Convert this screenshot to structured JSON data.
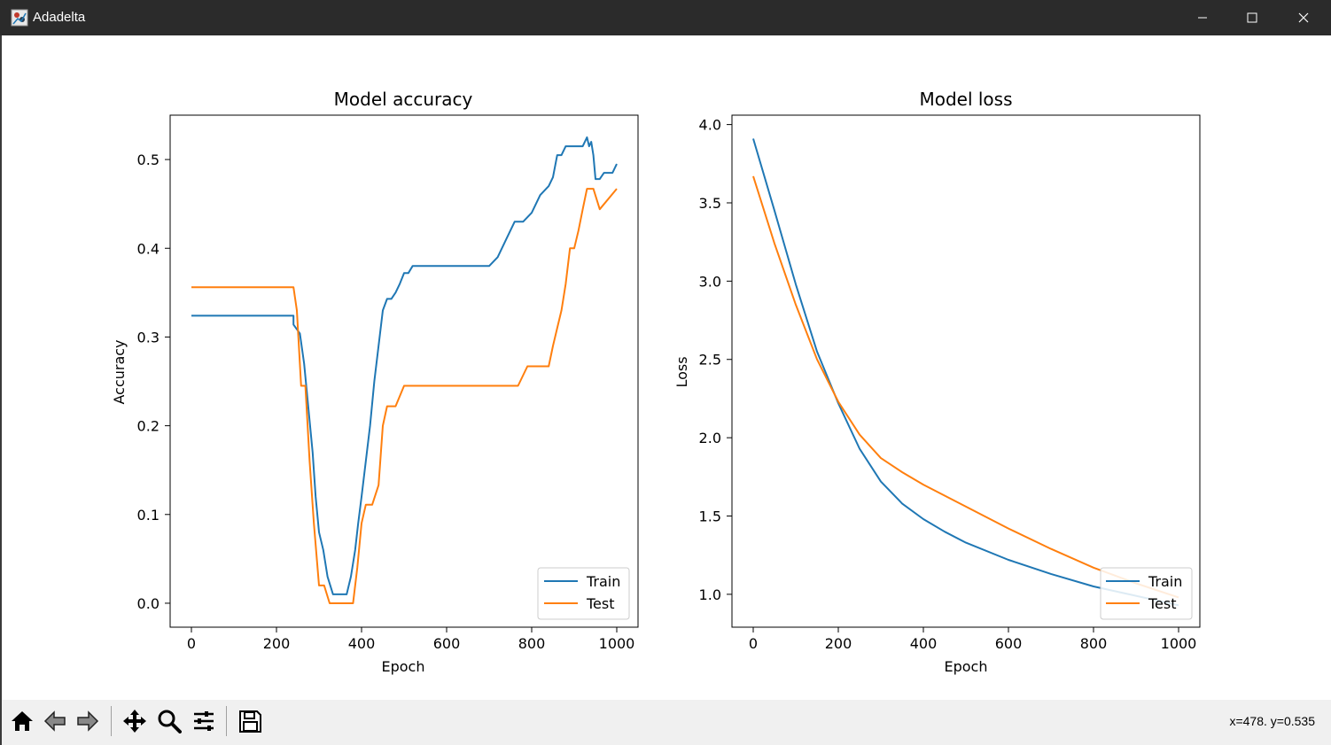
{
  "window": {
    "title": "Adadelta",
    "icon": "matplotlib-figure-icon",
    "controls": [
      "minimize-icon",
      "maximize-icon",
      "close-icon"
    ]
  },
  "toolbar": {
    "buttons": [
      "home-icon",
      "back-icon",
      "forward-icon",
      "pan-icon",
      "zoom-icon",
      "configure-subplots-icon",
      "save-icon"
    ],
    "coords": "x=478. y=0.535"
  },
  "colors": {
    "train": "#1f77b4",
    "test": "#ff7f0e"
  },
  "chart_data": [
    {
      "type": "line",
      "title": "Model accuracy",
      "xlabel": "Epoch",
      "ylabel": "Accuracy",
      "xlim": [
        -50,
        1050
      ],
      "ylim": [
        -0.027,
        0.55
      ],
      "xticks": [
        0,
        200,
        400,
        600,
        800,
        1000
      ],
      "xtick_labels": [
        "0",
        "200",
        "400",
        "600",
        "800",
        "1000"
      ],
      "yticks": [
        0.0,
        0.1,
        0.2,
        0.3,
        0.4,
        0.5
      ],
      "ytick_labels": [
        "0.0",
        "0.1",
        "0.2",
        "0.3",
        "0.4",
        "0.5"
      ],
      "legend": "lower-right",
      "series": [
        {
          "name": "Train",
          "x": [
            0,
            240,
            240,
            255,
            265,
            275,
            285,
            292,
            300,
            310,
            320,
            333,
            340,
            350,
            365,
            375,
            385,
            392,
            400,
            410,
            420,
            430,
            440,
            450,
            460,
            470,
            480,
            490,
            500,
            510,
            520,
            530,
            545,
            560,
            580,
            600,
            620,
            660,
            700,
            720,
            740,
            750,
            760,
            780,
            800,
            820,
            840,
            850,
            860,
            870,
            880,
            900,
            920,
            930,
            935,
            940,
            945,
            950,
            960,
            970,
            990,
            1000
          ],
          "y": [
            0.324,
            0.324,
            0.314,
            0.304,
            0.27,
            0.22,
            0.17,
            0.12,
            0.08,
            0.06,
            0.03,
            0.01,
            0.01,
            0.01,
            0.01,
            0.03,
            0.06,
            0.09,
            0.12,
            0.16,
            0.2,
            0.25,
            0.29,
            0.33,
            0.343,
            0.343,
            0.35,
            0.36,
            0.372,
            0.372,
            0.38,
            0.38,
            0.38,
            0.38,
            0.38,
            0.38,
            0.38,
            0.38,
            0.38,
            0.39,
            0.41,
            0.42,
            0.43,
            0.43,
            0.44,
            0.46,
            0.47,
            0.48,
            0.505,
            0.505,
            0.515,
            0.515,
            0.515,
            0.525,
            0.515,
            0.52,
            0.505,
            0.478,
            0.478,
            0.485,
            0.485,
            0.495
          ]
        },
        {
          "name": "Test",
          "x": [
            0,
            240,
            248,
            258,
            268,
            278,
            288,
            300,
            312,
            325,
            340,
            380,
            390,
            400,
            410,
            425,
            440,
            450,
            460,
            480,
            500,
            550,
            600,
            700,
            768,
            790,
            840,
            850,
            860,
            870,
            880,
            890,
            900,
            910,
            920,
            930,
            945,
            960,
            1000
          ],
          "y": [
            0.356,
            0.356,
            0.33,
            0.245,
            0.245,
            0.16,
            0.09,
            0.02,
            0.02,
            0.0,
            0.0,
            0.0,
            0.04,
            0.09,
            0.111,
            0.111,
            0.133,
            0.2,
            0.222,
            0.222,
            0.245,
            0.245,
            0.245,
            0.245,
            0.245,
            0.267,
            0.267,
            0.29,
            0.31,
            0.33,
            0.36,
            0.4,
            0.4,
            0.42,
            0.444,
            0.467,
            0.467,
            0.444,
            0.467
          ]
        }
      ]
    },
    {
      "type": "line",
      "title": "Model loss",
      "xlabel": "Epoch",
      "ylabel": "Loss",
      "xlim": [
        -50,
        1050
      ],
      "ylim": [
        0.79,
        4.06
      ],
      "xticks": [
        0,
        200,
        400,
        600,
        800,
        1000
      ],
      "xtick_labels": [
        "0",
        "200",
        "400",
        "600",
        "800",
        "1000"
      ],
      "yticks": [
        1.0,
        1.5,
        2.0,
        2.5,
        3.0,
        3.5,
        4.0
      ],
      "ytick_labels": [
        "1.0",
        "1.5",
        "2.0",
        "2.5",
        "3.0",
        "3.5",
        "4.0"
      ],
      "legend": "lower-right",
      "series": [
        {
          "name": "Train",
          "x": [
            0,
            50,
            100,
            150,
            200,
            250,
            300,
            350,
            400,
            450,
            500,
            600,
            700,
            800,
            900,
            1000
          ],
          "y": [
            3.91,
            3.45,
            2.98,
            2.55,
            2.22,
            1.93,
            1.72,
            1.58,
            1.48,
            1.4,
            1.33,
            1.22,
            1.13,
            1.05,
            0.99,
            0.93
          ]
        },
        {
          "name": "Test",
          "x": [
            0,
            50,
            100,
            150,
            200,
            250,
            300,
            350,
            400,
            450,
            500,
            600,
            700,
            800,
            900,
            1000
          ],
          "y": [
            3.67,
            3.24,
            2.85,
            2.5,
            2.23,
            2.02,
            1.87,
            1.78,
            1.7,
            1.63,
            1.56,
            1.42,
            1.29,
            1.17,
            1.07,
            0.98
          ]
        }
      ]
    }
  ]
}
